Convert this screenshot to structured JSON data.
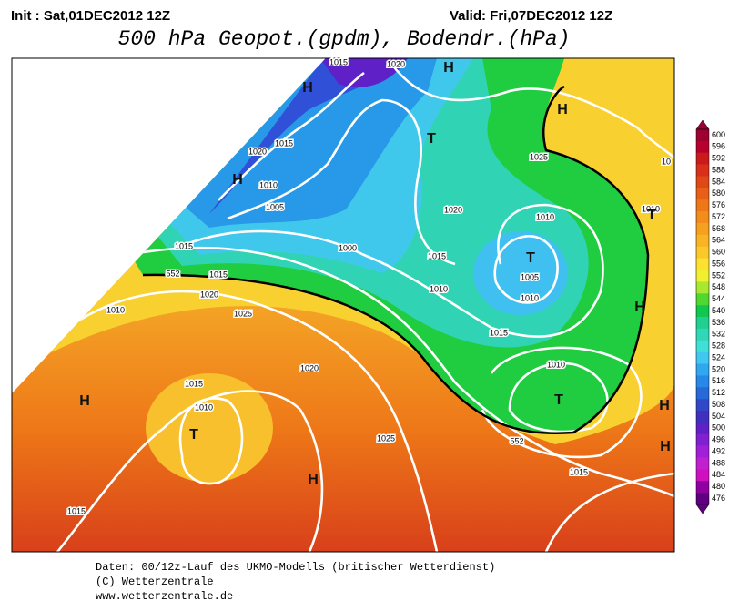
{
  "header": {
    "init": "Init : Sat,01DEC2012 12Z",
    "valid": "Valid: Fri,07DEC2012 12Z",
    "title": "500 hPa Geopot.(gpdm), Bodendr.(hPa)"
  },
  "map": {
    "labels": [
      "1015",
      "1020",
      "1020",
      "1015",
      "1010",
      "1005",
      "1000",
      "1015",
      "1015",
      "1020",
      "1025",
      "1010",
      "1025",
      "1020",
      "1010",
      "1015",
      "1005",
      "1010",
      "1010",
      "1015",
      "1010",
      "1020",
      "1015",
      "1010",
      "1025",
      "1015",
      "1015",
      "1010",
      "10",
      "552",
      "552",
      "H",
      "H",
      "H",
      "H",
      "H",
      "H",
      "H",
      "H",
      "H",
      "T",
      "T",
      "T",
      "T",
      "T"
    ]
  },
  "legend": {
    "labels": [
      600,
      596,
      592,
      588,
      584,
      580,
      576,
      572,
      568,
      564,
      560,
      556,
      552,
      548,
      544,
      540,
      536,
      532,
      528,
      524,
      520,
      516,
      512,
      508,
      504,
      500,
      496,
      492,
      488,
      484,
      480,
      476
    ],
    "colors": [
      "#9e0032",
      "#b8002c",
      "#cc1a1a",
      "#d8301a",
      "#e04818",
      "#e86018",
      "#ee7818",
      "#f28c1a",
      "#f5a01e",
      "#f8b424",
      "#fbc82a",
      "#fde030",
      "#f0f030",
      "#a8e830",
      "#50d830",
      "#10c850",
      "#20d090",
      "#30d8b8",
      "#40e0d8",
      "#40c8f0",
      "#30a8f0",
      "#2888e8",
      "#2868d8",
      "#3048c8",
      "#4030c0",
      "#6020c8",
      "#8020d0",
      "#a020d8",
      "#c020d0",
      "#d010c0",
      "#9000a0",
      "#600080"
    ]
  },
  "footer": {
    "lines": [
      "Daten: 00/12z-Lauf des UKMO-Modells (britischer Wetterdienst)",
      "(C) Wetterzentrale",
      "www.wetterzentrale.de"
    ]
  }
}
